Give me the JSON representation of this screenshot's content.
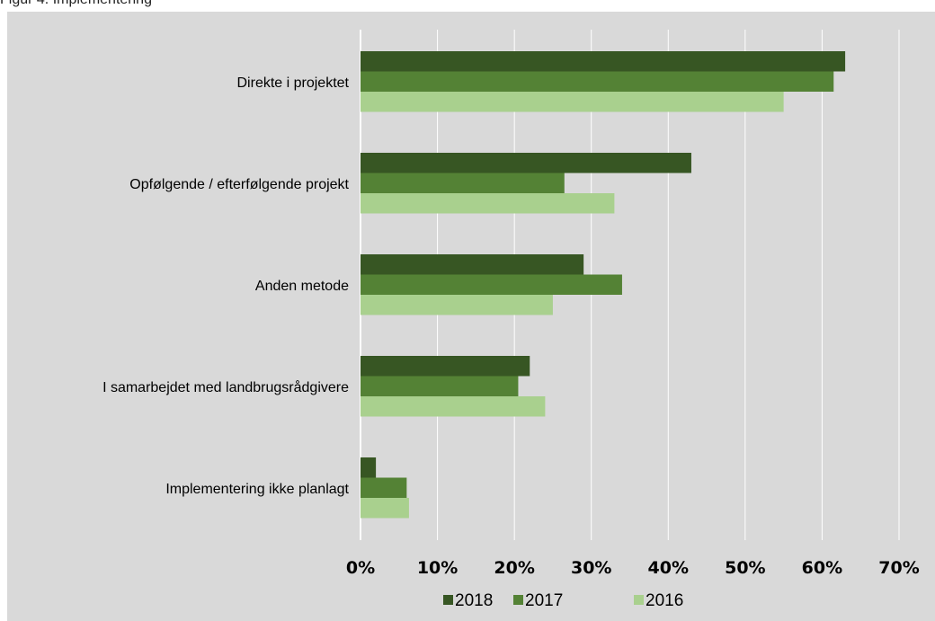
{
  "caption": "Figur 4. Implementering",
  "chart_data": {
    "type": "bar",
    "orientation": "horizontal",
    "categories": [
      "Direkte i projektet",
      "Opfølgende / efterfølgende projekt",
      "Anden metode",
      "I samarbejdet med landbrugsrådgivere",
      "Implementering ikke planlagt"
    ],
    "series": [
      {
        "name": "2018",
        "color": "#375623",
        "values": [
          63,
          43,
          29,
          22,
          2
        ]
      },
      {
        "name": "2017",
        "color": "#548235",
        "values": [
          61.5,
          26.5,
          34,
          20.5,
          6
        ]
      },
      {
        "name": "2016",
        "color": "#a9d08e",
        "values": [
          55,
          33,
          25,
          24,
          6.3
        ]
      }
    ],
    "xlim": [
      0,
      70
    ],
    "xticks": [
      "0%",
      "10%",
      "20%",
      "30%",
      "40%",
      "50%",
      "60%",
      "70%"
    ],
    "grid": true,
    "legend": "bottom",
    "legend_order": [
      "2018",
      "2017",
      "2016"
    ],
    "colors": {
      "background": "#d9d9d9",
      "grid": "#ffffff"
    }
  }
}
